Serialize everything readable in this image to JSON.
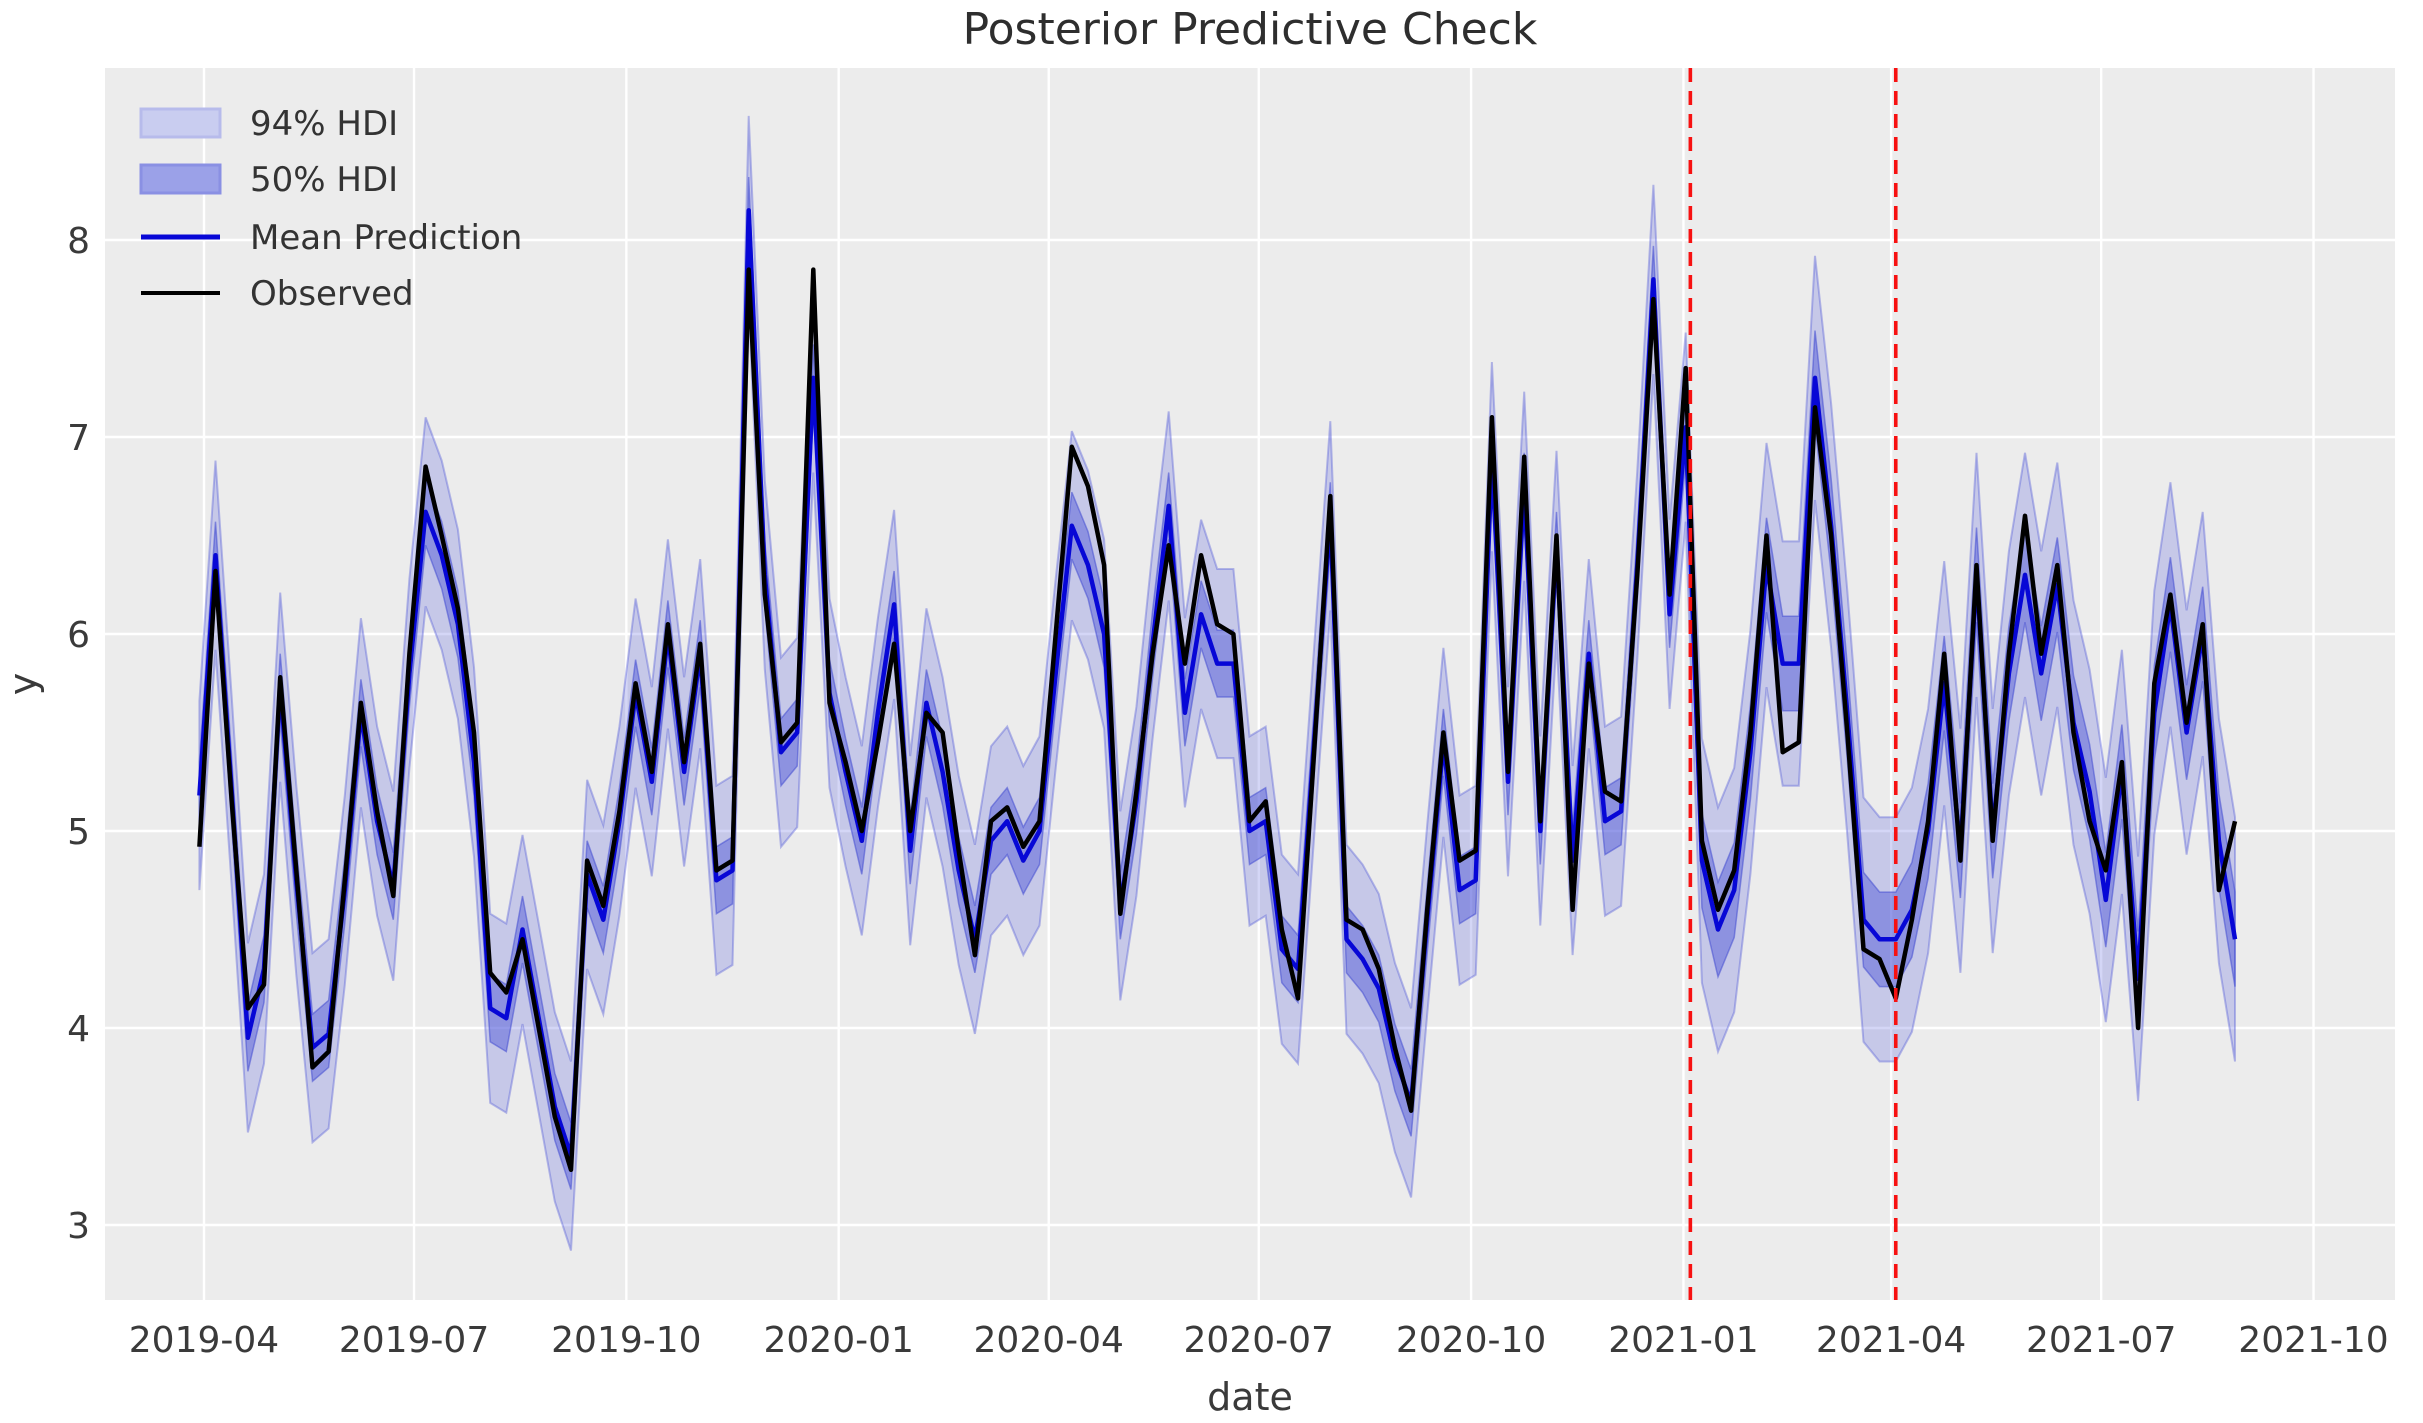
{
  "title": "Posterior Predictive Check",
  "colors": {
    "figure_bg": "#ffffff",
    "axes_bg": "#ececec",
    "grid": "#ffffff",
    "hdi94_fill": "rgba(90,96,222,0.26)",
    "hdi94_edge": "rgba(80,88,215,0.38)",
    "hdi50_fill": "rgba(72,80,215,0.45)",
    "hdi50_edge": "rgba(70,78,210,0.55)",
    "mean_line": "#0707d6",
    "observed_line": "#000000",
    "vline_red": "#f71111",
    "tick_text": "#3a3a3a",
    "title_text": "#2e2e2e",
    "legend_swatch94_fill": "#c9cdf0",
    "legend_swatch94_edge": "#b7bbeb",
    "legend_swatch50_fill": "#9ba1e8",
    "legend_swatch50_edge": "#8a90e3"
  },
  "chart_data": {
    "type": "line",
    "title": "Posterior Predictive Check",
    "xlabel": "date",
    "ylabel": "y",
    "grid": true,
    "legend_position": "upper left",
    "legend": [
      {
        "label": "94% HDI",
        "kind": "band"
      },
      {
        "label": "50% HDI",
        "kind": "band"
      },
      {
        "label": "Mean Prediction",
        "kind": "line"
      },
      {
        "label": "Observed",
        "kind": "line"
      }
    ],
    "y_ticks": [
      3,
      4,
      5,
      6,
      7,
      8
    ],
    "ylim": [
      2.62,
      8.87
    ],
    "x_ticks": [
      {
        "label": "2019-04",
        "date": "2019-04-01"
      },
      {
        "label": "2019-07",
        "date": "2019-07-01"
      },
      {
        "label": "2019-10",
        "date": "2019-10-01"
      },
      {
        "label": "2020-01",
        "date": "2020-01-01"
      },
      {
        "label": "2020-04",
        "date": "2020-04-01"
      },
      {
        "label": "2020-07",
        "date": "2020-07-01"
      },
      {
        "label": "2020-10",
        "date": "2020-10-01"
      },
      {
        "label": "2021-01",
        "date": "2021-01-01"
      },
      {
        "label": "2021-04",
        "date": "2021-04-01"
      },
      {
        "label": "2021-07",
        "date": "2021-07-01"
      },
      {
        "label": "2021-10",
        "date": "2021-10-01"
      }
    ],
    "vlines": {
      "dates": [
        "2021-01-04",
        "2021-04-03"
      ],
      "style": "dashed",
      "color": "#f71111"
    },
    "forecast_start_index": 93,
    "hdi94_halfwidth_hist": 0.48,
    "hdi94_halfwidth_forecast": 0.62,
    "hdi50_halfwidth_hist": 0.17,
    "hdi50_halfwidth_forecast": 0.24,
    "dates": [
      "2019-03-30",
      "2019-04-06",
      "2019-04-13",
      "2019-04-20",
      "2019-04-27",
      "2019-05-04",
      "2019-05-11",
      "2019-05-18",
      "2019-05-25",
      "2019-06-01",
      "2019-06-08",
      "2019-06-15",
      "2019-06-22",
      "2019-06-29",
      "2019-07-06",
      "2019-07-13",
      "2019-07-20",
      "2019-07-27",
      "2019-08-03",
      "2019-08-10",
      "2019-08-17",
      "2019-08-24",
      "2019-08-31",
      "2019-09-07",
      "2019-09-14",
      "2019-09-21",
      "2019-09-28",
      "2019-10-05",
      "2019-10-12",
      "2019-10-19",
      "2019-10-26",
      "2019-11-02",
      "2019-11-09",
      "2019-11-16",
      "2019-11-23",
      "2019-11-30",
      "2019-12-07",
      "2019-12-14",
      "2019-12-21",
      "2019-12-28",
      "2020-01-04",
      "2020-01-11",
      "2020-01-18",
      "2020-01-25",
      "2020-02-01",
      "2020-02-08",
      "2020-02-15",
      "2020-02-22",
      "2020-02-29",
      "2020-03-07",
      "2020-03-14",
      "2020-03-21",
      "2020-03-28",
      "2020-04-04",
      "2020-04-11",
      "2020-04-18",
      "2020-04-25",
      "2020-05-02",
      "2020-05-09",
      "2020-05-16",
      "2020-05-23",
      "2020-05-30",
      "2020-06-06",
      "2020-06-13",
      "2020-06-20",
      "2020-06-27",
      "2020-07-04",
      "2020-07-11",
      "2020-07-18",
      "2020-07-25",
      "2020-08-01",
      "2020-08-08",
      "2020-08-15",
      "2020-08-22",
      "2020-08-29",
      "2020-09-05",
      "2020-09-12",
      "2020-09-19",
      "2020-09-26",
      "2020-10-03",
      "2020-10-10",
      "2020-10-17",
      "2020-10-24",
      "2020-10-31",
      "2020-11-07",
      "2020-11-14",
      "2020-11-21",
      "2020-11-28",
      "2020-12-05",
      "2020-12-12",
      "2020-12-19",
      "2020-12-26",
      "2021-01-02",
      "2021-01-09",
      "2021-01-16",
      "2021-01-23",
      "2021-01-30",
      "2021-02-06",
      "2021-02-13",
      "2021-02-20",
      "2021-02-27",
      "2021-03-06",
      "2021-03-13",
      "2021-03-20",
      "2021-03-27",
      "2021-04-03",
      "2021-04-10",
      "2021-04-17",
      "2021-04-24",
      "2021-05-01",
      "2021-05-08",
      "2021-05-15",
      "2021-05-22",
      "2021-05-29",
      "2021-06-05",
      "2021-06-12",
      "2021-06-19",
      "2021-06-26",
      "2021-07-03",
      "2021-07-10",
      "2021-07-17",
      "2021-07-24",
      "2021-07-31",
      "2021-08-07",
      "2021-08-14",
      "2021-08-21",
      "2021-08-28"
    ],
    "series": [
      {
        "name": "Observed",
        "values": [
          4.92,
          6.32,
          5.15,
          4.1,
          4.22,
          5.78,
          4.8,
          3.8,
          3.88,
          4.75,
          5.65,
          5.1,
          4.67,
          5.9,
          6.85,
          6.5,
          6.13,
          5.5,
          4.28,
          4.18,
          4.45,
          4.0,
          3.55,
          3.28,
          4.85,
          4.62,
          5.1,
          5.75,
          5.3,
          6.05,
          5.35,
          5.95,
          4.8,
          4.85,
          7.85,
          6.2,
          5.45,
          5.55,
          7.85,
          5.65,
          5.35,
          5.0,
          5.45,
          5.95,
          5.0,
          5.6,
          5.5,
          4.9,
          4.37,
          5.05,
          5.12,
          4.92,
          5.05,
          6.0,
          6.95,
          6.75,
          6.35,
          4.58,
          5.2,
          5.9,
          6.45,
          5.85,
          6.4,
          6.05,
          6.0,
          5.05,
          5.15,
          4.5,
          4.15,
          5.4,
          6.7,
          4.55,
          4.5,
          4.3,
          3.9,
          3.58,
          4.6,
          5.5,
          4.85,
          4.9,
          7.1,
          5.3,
          6.9,
          5.05,
          6.5,
          4.6,
          5.85,
          5.2,
          5.15,
          6.3,
          7.7,
          6.2,
          7.35,
          4.95,
          4.6,
          4.8,
          5.5,
          6.5,
          5.4,
          5.45,
          7.15,
          6.5,
          5.5,
          4.4,
          4.35,
          4.15,
          4.55,
          5.05,
          5.9,
          4.85,
          6.35,
          4.95,
          5.9,
          6.6,
          5.9,
          6.35,
          5.5,
          5.05,
          4.8,
          5.35,
          4.0,
          5.75,
          6.2,
          5.55,
          6.05,
          4.7,
          5.05
        ]
      },
      {
        "name": "Mean Prediction",
        "values": [
          5.18,
          6.4,
          5.2,
          3.95,
          4.3,
          5.73,
          4.75,
          3.9,
          3.97,
          4.7,
          5.6,
          5.05,
          4.72,
          5.8,
          6.62,
          6.4,
          6.05,
          5.35,
          4.1,
          4.05,
          4.5,
          4.05,
          3.6,
          3.35,
          4.78,
          4.55,
          5.05,
          5.7,
          5.25,
          6.0,
          5.3,
          5.9,
          4.75,
          4.8,
          8.15,
          6.3,
          5.4,
          5.5,
          7.3,
          5.7,
          5.3,
          4.95,
          5.6,
          6.15,
          4.9,
          5.65,
          5.3,
          4.8,
          4.45,
          4.95,
          5.05,
          4.85,
          5.0,
          5.8,
          6.55,
          6.35,
          6.0,
          4.62,
          5.15,
          5.95,
          6.65,
          5.6,
          6.1,
          5.85,
          5.85,
          5.0,
          5.05,
          4.4,
          4.3,
          5.45,
          6.6,
          4.45,
          4.35,
          4.2,
          3.85,
          3.62,
          4.55,
          5.45,
          4.7,
          4.75,
          6.9,
          5.25,
          6.75,
          5.0,
          6.45,
          4.85,
          5.9,
          5.05,
          5.1,
          6.35,
          7.8,
          6.1,
          7.05,
          4.85,
          4.5,
          4.7,
          5.4,
          6.35,
          5.85,
          5.85,
          7.3,
          6.55,
          5.6,
          4.55,
          4.45,
          4.45,
          4.6,
          5.0,
          5.75,
          4.9,
          6.3,
          5.0,
          5.8,
          6.3,
          5.8,
          6.25,
          5.55,
          5.2,
          4.65,
          5.3,
          4.25,
          5.6,
          6.15,
          5.5,
          6.0,
          4.95,
          4.45
        ]
      }
    ]
  }
}
